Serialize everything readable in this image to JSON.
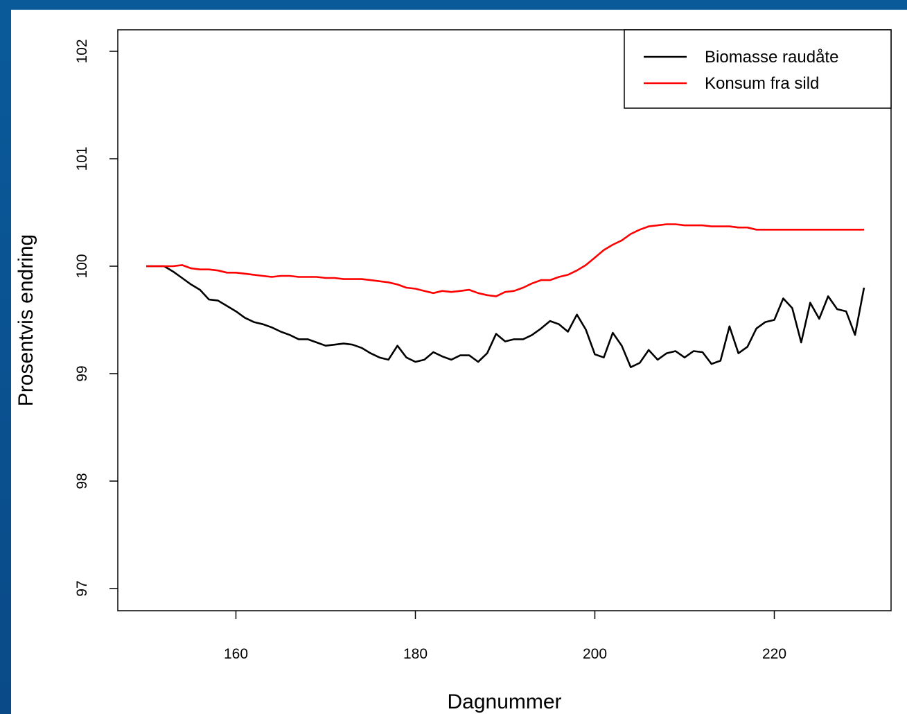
{
  "chart_data": {
    "type": "line",
    "title": "",
    "xlabel": "Dagnummer",
    "ylabel": "Prosentvis endring",
    "xlim": [
      148,
      232
    ],
    "ylim": [
      96.85,
      102.2
    ],
    "xticks": [
      160,
      180,
      200,
      220
    ],
    "yticks": [
      97,
      98,
      99,
      100,
      101,
      102
    ],
    "grid": false,
    "legend": "top-right",
    "series": [
      {
        "name": "Biomasse raudåte",
        "color": "#000000",
        "x": [
          150,
          151,
          152,
          153,
          154,
          155,
          156,
          157,
          158,
          159,
          160,
          161,
          162,
          163,
          164,
          165,
          166,
          167,
          168,
          169,
          170,
          171,
          172,
          173,
          174,
          175,
          176,
          177,
          178,
          179,
          180,
          181,
          182,
          183,
          184,
          185,
          186,
          187,
          188,
          189,
          190,
          191,
          192,
          193,
          194,
          195,
          196,
          197,
          198,
          199,
          200,
          201,
          202,
          203,
          204,
          205,
          206,
          207,
          208,
          209,
          210,
          211,
          212,
          213,
          214,
          215,
          216,
          217,
          218,
          219,
          220,
          221,
          222,
          223,
          224,
          225,
          226,
          227,
          228,
          229,
          230
        ],
        "values": [
          100.0,
          100.0,
          100.0,
          99.95,
          99.89,
          99.83,
          99.78,
          99.69,
          99.68,
          99.63,
          99.58,
          99.52,
          99.48,
          99.46,
          99.43,
          99.39,
          99.36,
          99.32,
          99.32,
          99.29,
          99.26,
          99.27,
          99.28,
          99.27,
          99.24,
          99.19,
          99.15,
          99.13,
          99.26,
          99.15,
          99.11,
          99.13,
          99.2,
          99.16,
          99.13,
          99.17,
          99.17,
          99.11,
          99.19,
          99.37,
          99.3,
          99.32,
          99.32,
          99.36,
          99.42,
          99.49,
          99.46,
          99.39,
          99.55,
          99.41,
          99.18,
          99.15,
          99.38,
          99.26,
          99.06,
          99.1,
          99.22,
          99.13,
          99.19,
          99.21,
          99.15,
          99.21,
          99.2,
          99.09,
          99.12,
          99.44,
          99.19,
          99.25,
          99.42,
          99.48,
          99.5,
          99.7,
          99.61,
          99.29,
          99.66,
          99.51,
          99.72,
          99.6,
          99.58,
          99.36,
          99.8
        ]
      },
      {
        "name": "Konsum fra sild",
        "color": "#ff0000",
        "x": [
          150,
          151,
          152,
          153,
          154,
          155,
          156,
          157,
          158,
          159,
          160,
          161,
          162,
          163,
          164,
          165,
          166,
          167,
          168,
          169,
          170,
          171,
          172,
          173,
          174,
          175,
          176,
          177,
          178,
          179,
          180,
          181,
          182,
          183,
          184,
          185,
          186,
          187,
          188,
          189,
          190,
          191,
          192,
          193,
          194,
          195,
          196,
          197,
          198,
          199,
          200,
          201,
          202,
          203,
          204,
          205,
          206,
          207,
          208,
          209,
          210,
          211,
          212,
          213,
          214,
          215,
          216,
          217,
          218,
          219,
          220,
          221,
          222,
          223,
          224,
          225,
          226,
          227,
          228,
          229,
          230
        ],
        "values": [
          100.0,
          100.0,
          100.0,
          100.0,
          100.01,
          99.98,
          99.97,
          99.97,
          99.96,
          99.94,
          99.94,
          99.93,
          99.92,
          99.91,
          99.9,
          99.91,
          99.91,
          99.9,
          99.9,
          99.9,
          99.89,
          99.89,
          99.88,
          99.88,
          99.88,
          99.87,
          99.86,
          99.85,
          99.83,
          99.8,
          99.79,
          99.77,
          99.75,
          99.77,
          99.76,
          99.77,
          99.78,
          99.75,
          99.73,
          99.72,
          99.76,
          99.77,
          99.8,
          99.84,
          99.87,
          99.87,
          99.9,
          99.92,
          99.96,
          100.01,
          100.08,
          100.15,
          100.2,
          100.24,
          100.3,
          100.34,
          100.37,
          100.38,
          100.39,
          100.39,
          100.38,
          100.38,
          100.38,
          100.37,
          100.37,
          100.37,
          100.36,
          100.36,
          100.34,
          100.34,
          100.34,
          100.34,
          100.34,
          100.34,
          100.34,
          100.34,
          100.34,
          100.34,
          100.34,
          100.34,
          100.34
        ]
      }
    ]
  }
}
